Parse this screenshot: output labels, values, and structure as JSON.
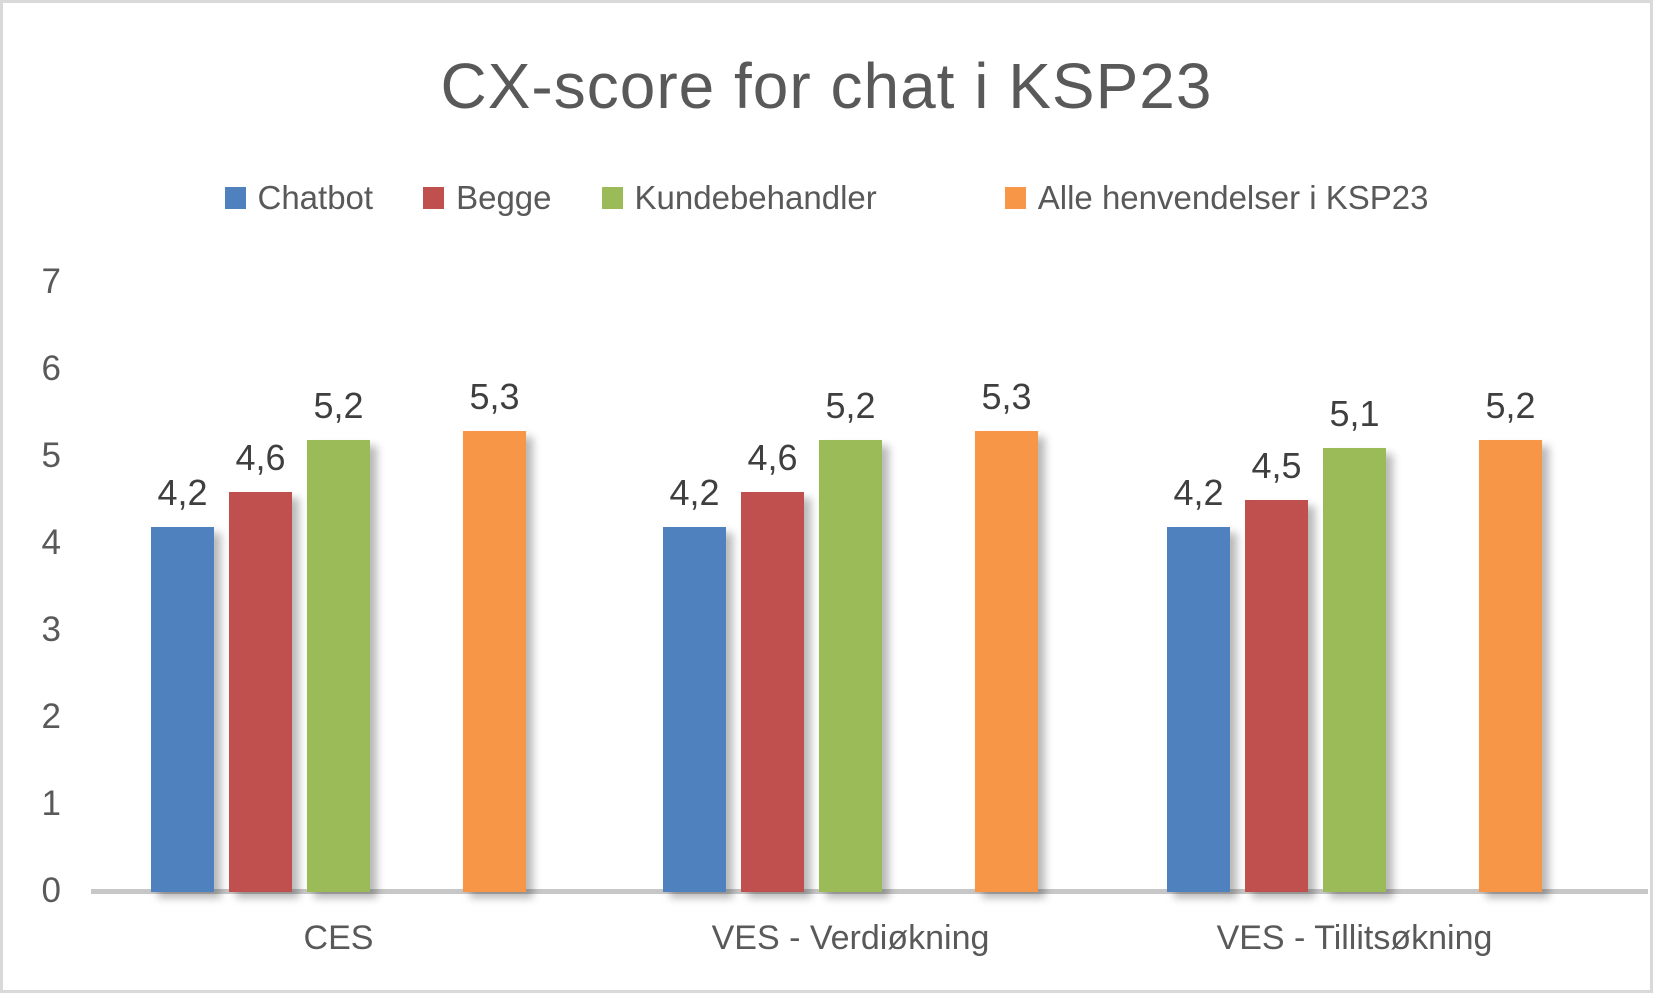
{
  "chart_data": {
    "type": "bar",
    "title": "CX-score for chat i KSP23",
    "categories": [
      "CES",
      "VES - Verdiøkning",
      "VES - Tillitsøkning"
    ],
    "series": [
      {
        "name": "Chatbot",
        "color": "#4E81BD",
        "values": [
          4.2,
          4.2,
          4.2
        ],
        "labels": [
          "4,2",
          "4,2",
          "4,2"
        ]
      },
      {
        "name": "Begge",
        "color": "#C0504D",
        "values": [
          4.6,
          4.6,
          4.5
        ],
        "labels": [
          "4,6",
          "4,6",
          "4,5"
        ]
      },
      {
        "name": "Kundebehandler",
        "color": "#9BBB59",
        "values": [
          5.2,
          5.2,
          5.1
        ],
        "labels": [
          "5,2",
          "5,2",
          "5,1"
        ]
      },
      {
        "name": "Alle henvendelser i KSP23",
        "color": "#F79646",
        "values": [
          5.3,
          5.3,
          5.2
        ],
        "labels": [
          "5,3",
          "5,3",
          "5,2"
        ]
      }
    ],
    "ylim": [
      0,
      7
    ],
    "yticks": [
      "0",
      "1",
      "2",
      "3",
      "4",
      "5",
      "6",
      "7"
    ],
    "grid": false,
    "legend_position": "top",
    "decimal_separator": ",",
    "xlabel": "",
    "ylabel": ""
  },
  "colors": {
    "title_text": "#595959",
    "tick_text": "#595959",
    "data_label_text": "#3f3f3f",
    "category_text": "#595959",
    "axis_line": "#c7c7c7",
    "frame_border": "#d9d9d9",
    "background": "#ffffff"
  }
}
